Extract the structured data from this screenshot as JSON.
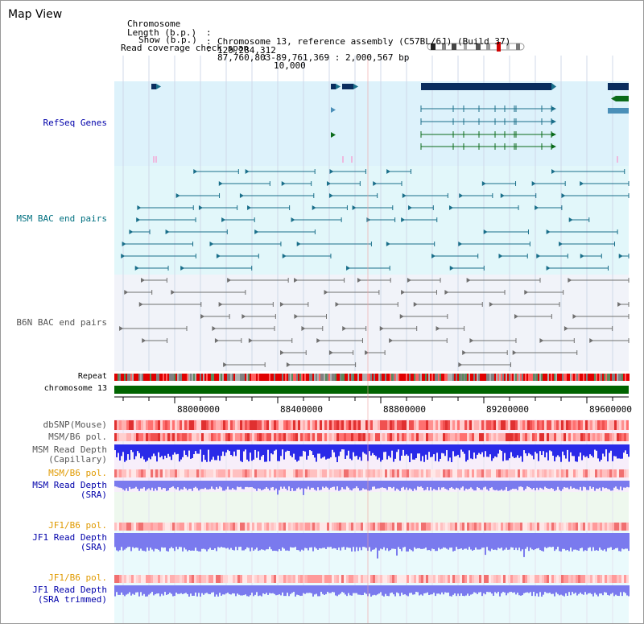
{
  "panel_title": "Map View",
  "header": {
    "chromosome_key": "Chromosome",
    "chromosome_value": "Chromosome 13, reference assembly (C57BL/6J) (Build 37)",
    "length_key": "Length (b.p.)",
    "length_value": "120,284,312",
    "show_key": "Show (b.p.)",
    "show_value": "87,760,803-89,761,369 : 2,000,567 bp",
    "coverage_key": "Read coverage check span",
    "coverage_value": "10,000"
  },
  "tracks": {
    "refseq": "RefSeq Genes",
    "msm_bac": "MSM BAC end pairs",
    "b6n_bac": "B6N BAC end pairs",
    "repeat": "Repeat",
    "chromosome": "chromosome 13",
    "dbsnp": "dbSNP(Mouse)",
    "msm_b6_pol_1": "MSM/B6 pol.",
    "msm_depth_cap_1": "MSM Read Depth",
    "msm_depth_cap_2": "(Capillary)",
    "msm_b6_pol_2": "MSM/B6 pol.",
    "msm_depth_sra_1": "MSM Read Depth",
    "msm_depth_sra_2": "(SRA)",
    "jf1_b6_pol_1": "JF1/B6 pol.",
    "jf1_depth_1": "JF1 Read Depth",
    "jf1_depth_2": "(SRA)",
    "jf1_b6_pol_2": "JF1/B6 pol.",
    "jf1_depth_trim_1": "JF1 Read Depth",
    "jf1_depth_trim_2": "(SRA trimmed)"
  },
  "axis_ticks": [
    "88000000",
    "88400000",
    "88800000",
    "89200000",
    "89600000"
  ],
  "colors": {
    "gene_dark": "#0a2d5e",
    "gene_teal": "#1a6f8a",
    "gene_green": "#0a6b1a",
    "msm_pair": "#1a6f8a",
    "b6n_pair": "#707070",
    "refseq_bg": "#ddf2fb",
    "msm_bg": "#e2f7fa",
    "b6n_bg": "#f1f3f9",
    "chrom_bar": "#006400",
    "depth_blue": "#2a2ae8",
    "depth_light": "#7a7aee",
    "label_blue": "#0000aa",
    "label_orange": "#e09a00",
    "label_teal": "#007080"
  }
}
